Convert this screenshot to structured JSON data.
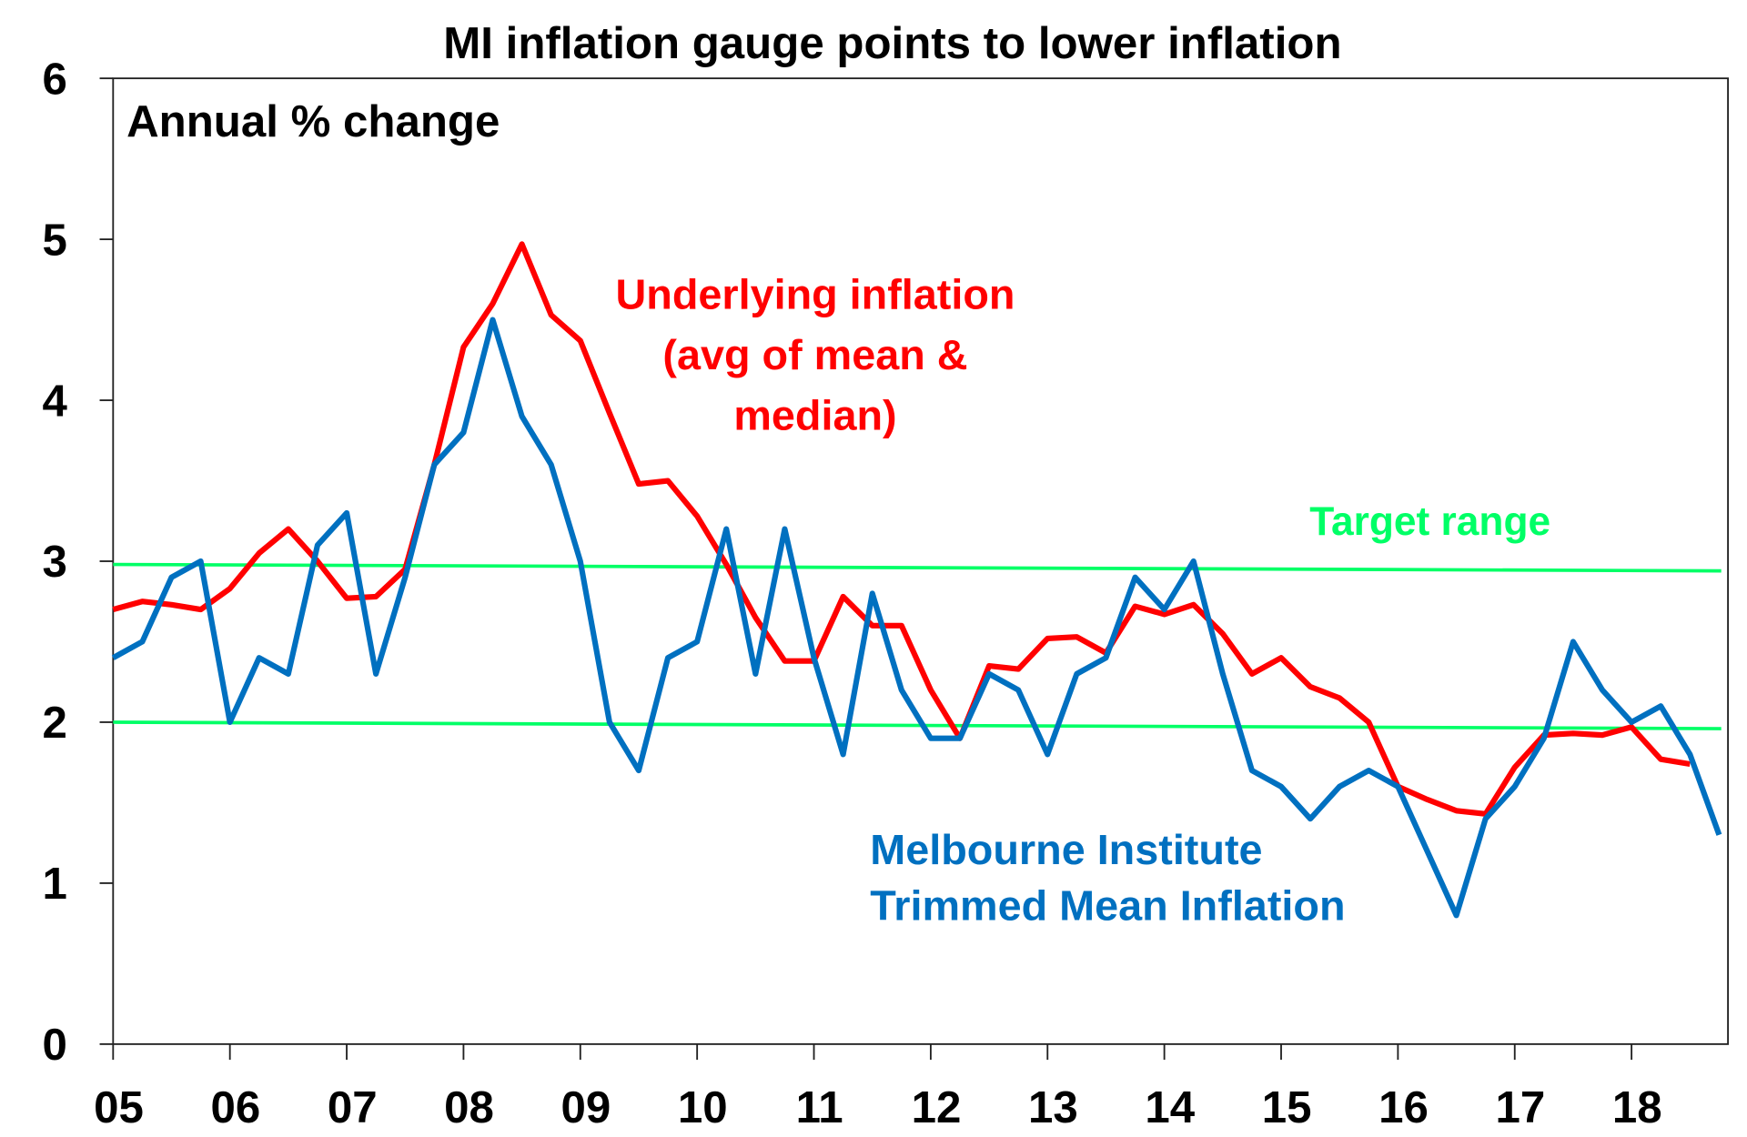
{
  "chart_data": {
    "type": "line",
    "title": "MI inflation gauge points to lower inflation",
    "ylabel": "Annual % change",
    "xlabel": "",
    "ylim": [
      0,
      6
    ],
    "xlim": [
      2005,
      2018.8
    ],
    "yticks": [
      "0",
      "1",
      "2",
      "3",
      "4",
      "5",
      "6"
    ],
    "xticks": [
      "05",
      "06",
      "07",
      "08",
      "09",
      "10",
      "11",
      "12",
      "13",
      "14",
      "15",
      "16",
      "17",
      "18"
    ],
    "x_start": 2005,
    "x_step": 0.25,
    "grid": false,
    "series": [
      {
        "name": "Underlying inflation (avg of mean & median)",
        "label_lines": [
          "Underlying inflation",
          "(avg of mean &",
          "median)"
        ],
        "color": "#ff0000",
        "values": [
          2.7,
          2.75,
          2.73,
          2.7,
          2.83,
          3.05,
          3.2,
          3.0,
          2.77,
          2.78,
          2.95,
          3.6,
          4.33,
          4.6,
          4.97,
          4.53,
          4.37,
          3.92,
          3.48,
          3.5,
          3.28,
          2.98,
          2.65,
          2.38,
          2.38,
          2.78,
          2.6,
          2.6,
          2.2,
          1.9,
          2.35,
          2.33,
          2.52,
          2.53,
          2.43,
          2.72,
          2.67,
          2.73,
          2.55,
          2.3,
          2.4,
          2.22,
          2.15,
          2.0,
          1.6,
          1.52,
          1.45,
          1.43,
          1.72,
          1.92,
          1.93,
          1.92,
          1.97,
          1.77,
          1.74
        ]
      },
      {
        "name": "Melbourne Institute Trimmed Mean Inflation",
        "label_lines": [
          "Melbourne Institute",
          "Trimmed Mean Inflation"
        ],
        "color": "#0070c0",
        "values": [
          2.4,
          2.5,
          2.9,
          3.0,
          2.0,
          2.4,
          2.3,
          3.1,
          3.3,
          2.3,
          2.9,
          3.6,
          3.8,
          4.5,
          3.9,
          3.6,
          3.0,
          2.0,
          1.7,
          2.4,
          2.5,
          3.2,
          2.3,
          3.2,
          2.4,
          1.8,
          2.8,
          2.2,
          1.9,
          1.9,
          2.3,
          2.2,
          1.8,
          2.3,
          2.4,
          2.9,
          2.7,
          3.0,
          2.3,
          1.7,
          1.6,
          1.4,
          1.6,
          1.7,
          1.6,
          1.2,
          0.8,
          1.4,
          1.6,
          1.9,
          2.5,
          2.2,
          2.0,
          2.1,
          1.8,
          1.3
        ]
      }
    ],
    "target_range": {
      "label": "Target range",
      "color": "#00ff66",
      "upper": [
        2.98,
        2.94
      ],
      "lower": [
        2.0,
        1.96
      ]
    }
  }
}
